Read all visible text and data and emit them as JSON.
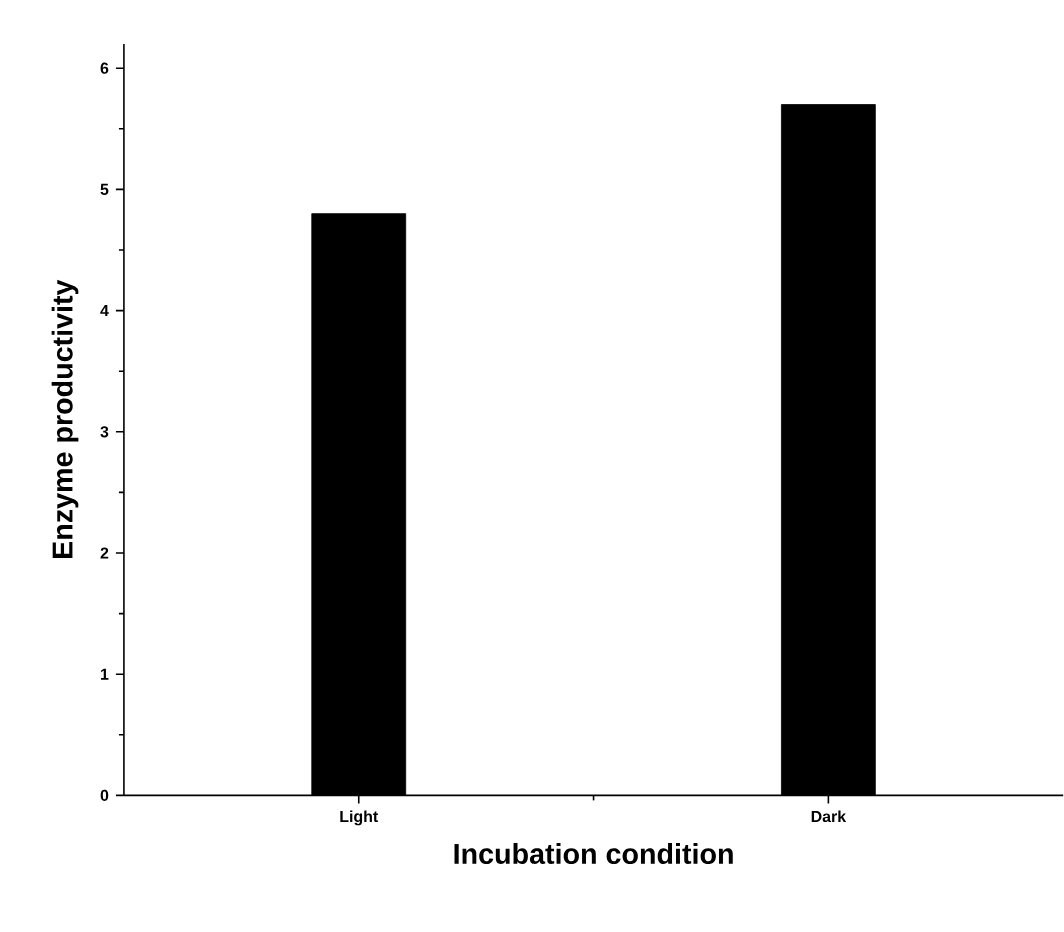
{
  "chart_data": {
    "type": "bar",
    "xlabel": "Incubation condition",
    "ylabel": "Enzyme productivity",
    "categories": [
      "Light",
      "Dark"
    ],
    "values": [
      4.8,
      5.7
    ],
    "color": "#000000",
    "ylim": [
      0,
      6.2
    ],
    "yticks": [
      0,
      1,
      2,
      3,
      4,
      5,
      6
    ]
  }
}
